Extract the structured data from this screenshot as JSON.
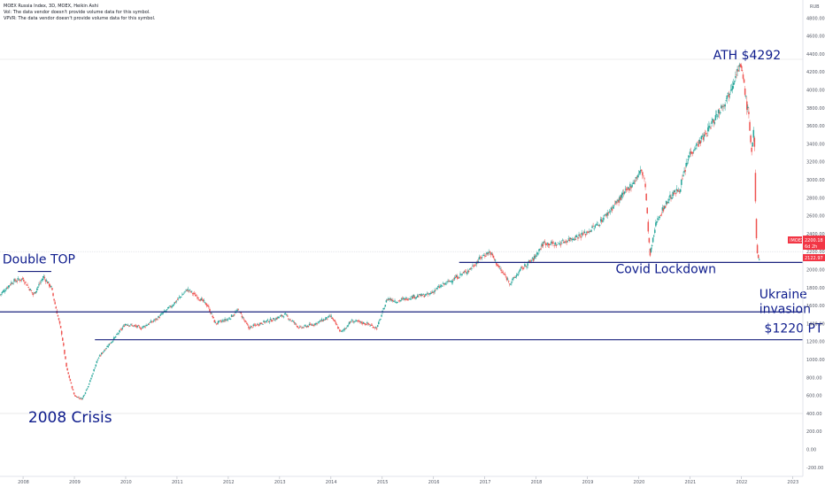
{
  "header": {
    "symbol_line": "MOEX Russia Index, 3D, MOEX, Heikin Ashi",
    "vol_line": "Vol: The data vendor doesn't provide volume data for this symbol.",
    "vpvr_line": "VPVR: The data vendor doesn't provide volume data for this symbol."
  },
  "axis": {
    "currency": "RUB",
    "price_tag_symbol": "IMOEX",
    "price_tag_value": "2200.18",
    "price_tag_sub": "6d 2h",
    "price_tag_low": "2122.97"
  },
  "colors": {
    "up": "#26a69a",
    "down": "#ef5350",
    "level": "#1a237e",
    "annotation": "#0d1b8c",
    "tag": "#f23645"
  },
  "chart_data": {
    "type": "candlestick",
    "title": "MOEX Russia Index, 3D, MOEX, Heikin Ashi",
    "xlim": [
      2007.55,
      2023.2
    ],
    "ylim": [
      -300,
      5000
    ],
    "x_ticks": [
      "2008",
      "2009",
      "2010",
      "2011",
      "2012",
      "2013",
      "2014",
      "2015",
      "2016",
      "2017",
      "2018",
      "2019",
      "2020",
      "2021",
      "2022",
      "2023"
    ],
    "y_ticks": [
      -200,
      0,
      200,
      400,
      600,
      800,
      1000,
      1200,
      1400,
      1600,
      1800,
      2000,
      2200,
      2400,
      2600,
      2800,
      3000,
      3200,
      3400,
      3600,
      3800,
      4000,
      4200,
      4400,
      4600,
      4800
    ],
    "y_tick_labels": [
      "-200.00",
      "0.00",
      "200.00",
      "400.00",
      "600.00",
      "800.00",
      "1000.00",
      "1200.00",
      "1400.00",
      "1600.00",
      "1800.00",
      "2000.00",
      "2200.00",
      "2400.00",
      "2600.00",
      "2800.00",
      "3000.00",
      "3200.00",
      "3400.00",
      "3600.00",
      "3800.00",
      "4000.00",
      "4200.00",
      "4400.00",
      "4600.00",
      "4800.00"
    ],
    "series": [
      {
        "path_points": [
          [
            2007.55,
            1720
          ],
          [
            2007.8,
            1870
          ],
          [
            2008.0,
            1900
          ],
          [
            2008.2,
            1720
          ],
          [
            2008.4,
            1920
          ],
          [
            2008.55,
            1800
          ],
          [
            2008.75,
            1300
          ],
          [
            2008.85,
            900
          ],
          [
            2009.0,
            600
          ],
          [
            2009.15,
            560
          ],
          [
            2009.3,
            750
          ],
          [
            2009.45,
            1000
          ],
          [
            2009.6,
            1120
          ],
          [
            2009.8,
            1250
          ],
          [
            2010.0,
            1400
          ],
          [
            2010.3,
            1350
          ],
          [
            2010.6,
            1450
          ],
          [
            2010.9,
            1600
          ],
          [
            2011.2,
            1780
          ],
          [
            2011.4,
            1700
          ],
          [
            2011.6,
            1600
          ],
          [
            2011.75,
            1400
          ],
          [
            2012.0,
            1450
          ],
          [
            2012.2,
            1550
          ],
          [
            2012.4,
            1350
          ],
          [
            2012.6,
            1400
          ],
          [
            2012.9,
            1450
          ],
          [
            2013.1,
            1500
          ],
          [
            2013.4,
            1350
          ],
          [
            2013.7,
            1400
          ],
          [
            2014.0,
            1480
          ],
          [
            2014.2,
            1300
          ],
          [
            2014.4,
            1430
          ],
          [
            2014.7,
            1400
          ],
          [
            2014.9,
            1350
          ],
          [
            2015.1,
            1680
          ],
          [
            2015.3,
            1650
          ],
          [
            2015.6,
            1700
          ],
          [
            2015.9,
            1720
          ],
          [
            2016.1,
            1800
          ],
          [
            2016.4,
            1900
          ],
          [
            2016.7,
            2000
          ],
          [
            2016.95,
            2150
          ],
          [
            2017.1,
            2200
          ],
          [
            2017.3,
            2000
          ],
          [
            2017.5,
            1850
          ],
          [
            2017.7,
            2000
          ],
          [
            2017.95,
            2120
          ],
          [
            2018.15,
            2300
          ],
          [
            2018.4,
            2280
          ],
          [
            2018.7,
            2350
          ],
          [
            2018.95,
            2400
          ],
          [
            2019.2,
            2500
          ],
          [
            2019.5,
            2700
          ],
          [
            2019.8,
            2900
          ],
          [
            2020.05,
            3100
          ],
          [
            2020.12,
            3000
          ],
          [
            2020.22,
            2150
          ],
          [
            2020.35,
            2550
          ],
          [
            2020.6,
            2800
          ],
          [
            2020.8,
            2900
          ],
          [
            2021.0,
            3300
          ],
          [
            2021.3,
            3500
          ],
          [
            2021.55,
            3750
          ],
          [
            2021.75,
            3950
          ],
          [
            2021.9,
            4200
          ],
          [
            2021.98,
            4260
          ],
          [
            2022.05,
            4100
          ],
          [
            2022.1,
            3850
          ],
          [
            2022.15,
            3700
          ],
          [
            2022.2,
            3300
          ],
          [
            2022.25,
            3600
          ],
          [
            2022.27,
            2900
          ],
          [
            2022.3,
            2200
          ],
          [
            2022.35,
            2120
          ]
        ]
      }
    ],
    "levels": [
      {
        "label": "",
        "y": 1980,
        "x_from": 2007.9,
        "x_to": 2008.55
      },
      {
        "label": "",
        "y": 2080,
        "x_from": 2016.5,
        "x_to": 2023.2
      },
      {
        "label": "",
        "y": 1530,
        "x_from": 2007.55,
        "x_to": 2023.2
      },
      {
        "label": "",
        "y": 1220,
        "x_from": 2009.4,
        "x_to": 2023.2
      }
    ],
    "annotations": [
      {
        "text": "ATH $4292",
        "x": 2021.45,
        "y": 4340
      },
      {
        "text": "Double TOP",
        "x": 2007.6,
        "y": 2070
      },
      {
        "text": "Covid Lockdown",
        "x": 2019.55,
        "y": 1960
      },
      {
        "text": "Ukraine",
        "x": 2022.35,
        "y": 1680
      },
      {
        "text": "invasion",
        "x": 2022.35,
        "y": 1520
      },
      {
        "text": "$1220 PT",
        "x": 2022.45,
        "y": 1300
      },
      {
        "text": "2008 Crisis",
        "x": 2008.1,
        "y": 300
      }
    ]
  }
}
